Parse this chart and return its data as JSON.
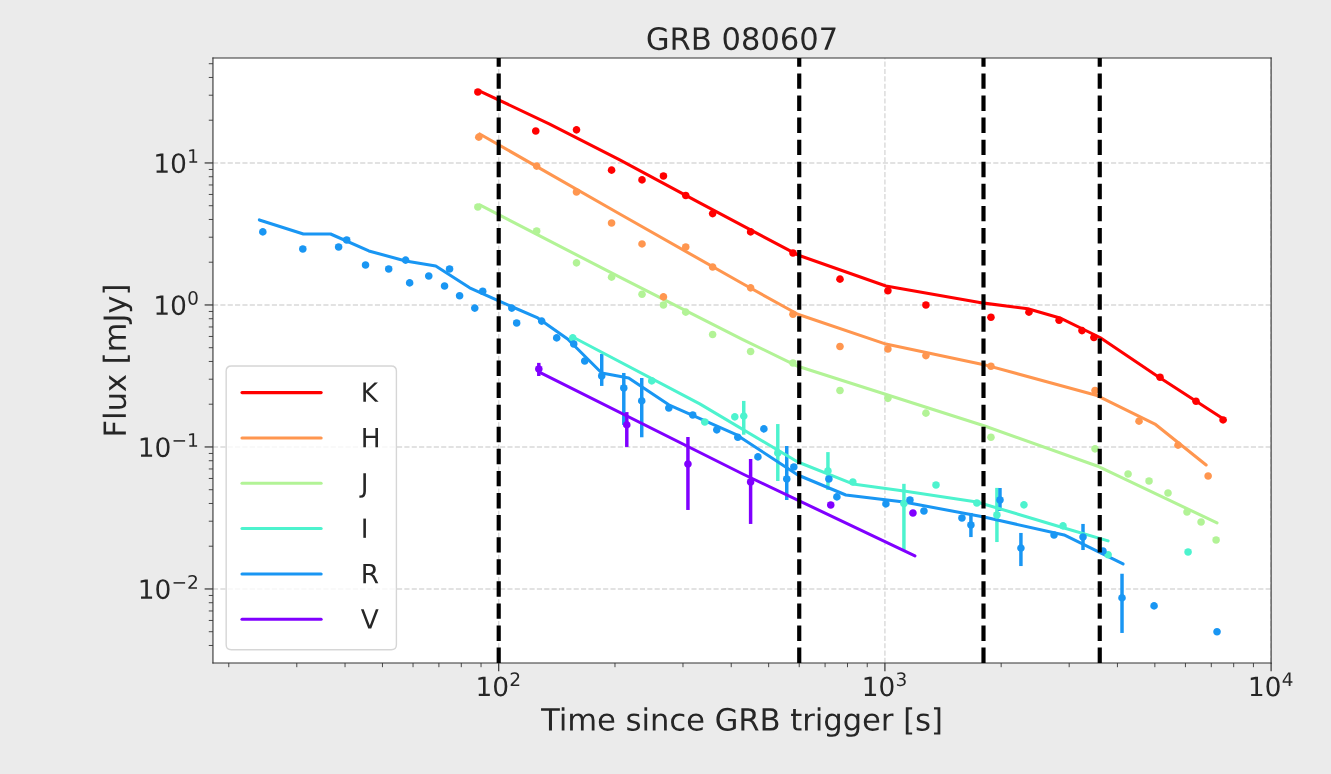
{
  "chart_data": {
    "type": "scatter",
    "title": "GRB 080607",
    "xlabel": "Time since GRB trigger [s]",
    "ylabel": "Flux [mJy]",
    "log": "xy",
    "grid": true,
    "legend": "bottom left",
    "xlim": [
      18.2,
      10000
    ],
    "ylim": [
      0.00301,
      54.8
    ],
    "xticks": [
      {
        "value": 100,
        "label": "10$^{2}$"
      },
      {
        "value": 1000,
        "label": "10$^{3}$"
      },
      {
        "value": 10000,
        "label": "10$^{4}$"
      }
    ],
    "yticks": [
      {
        "value": 0.01,
        "label": "10$^{−2}$"
      },
      {
        "value": 0.1,
        "label": "10$^{−1}$"
      },
      {
        "value": 1,
        "label": "10$^{0}$"
      },
      {
        "value": 10,
        "label": "10$^{1}$"
      }
    ],
    "ref_lines": [
      {
        "axis": "x",
        "value": 100,
        "color": "#000000",
        "line_style": "dashed"
      },
      {
        "axis": "x",
        "value": 600,
        "color": "#000000",
        "line_style": "dashed"
      },
      {
        "axis": "x",
        "value": 1800,
        "color": "#000000",
        "line_style": "dashed"
      },
      {
        "axis": "x",
        "value": 3600,
        "color": "#000000",
        "line_style": "dashed"
      }
    ],
    "series": [
      {
        "type": "line",
        "marker": "none",
        "name": "K",
        "color": "#ff0000",
        "x": [
          89.3,
          135.5,
          205.8,
          331.6,
          595,
          1006,
          1805,
          2345,
          2839,
          3606,
          5035,
          7600
        ],
        "values": [
          32.1,
          18.8,
          10.5,
          5.23,
          2.25,
          1.36,
          1.03,
          0.94,
          0.81,
          0.59,
          0.32,
          0.155
        ]
      },
      {
        "type": "line",
        "marker": "none",
        "name": "H",
        "color": "#ff964f",
        "x": [
          89.3,
          205.8,
          428.6,
          595,
          1006,
          1805,
          3543,
          5003,
          6788
        ],
        "values": [
          16.0,
          4.37,
          1.41,
          0.86,
          0.53,
          0.38,
          0.23,
          0.145,
          0.0747
        ]
      },
      {
        "type": "line",
        "marker": "none",
        "name": "J",
        "color": "#b2f396",
        "x": [
          89.3,
          205.8,
          428.6,
          595,
          1805,
          3543,
          7244
        ],
        "values": [
          5.06,
          1.57,
          0.57,
          0.37,
          0.141,
          0.0735,
          0.0292
        ]
      },
      {
        "type": "line",
        "marker": "none",
        "name": "I",
        "color": "#4df3ce",
        "x": [
          155.5,
          331.6,
          595,
          826,
          1120,
          1730,
          2911,
          3784
        ],
        "values": [
          0.595,
          0.201,
          0.0784,
          0.0549,
          0.049,
          0.041,
          0.0269,
          0.0218
        ]
      },
      {
        "type": "line",
        "marker": "none",
        "name": "R",
        "color": "#1996f3",
        "x": [
          24.0,
          31.2,
          36.7,
          46.1,
          57.4,
          68.7,
          84.1,
          99.0,
          126.2,
          150.8,
          184.8,
          217,
          275.7,
          413.6,
          595,
          792,
          1120,
          1805,
          2911,
          4136
        ],
        "values": [
          3.97,
          3.16,
          3.16,
          2.4,
          2.04,
          1.88,
          1.32,
          1.08,
          0.81,
          0.576,
          0.332,
          0.306,
          0.198,
          0.1215,
          0.0635,
          0.0459,
          0.041,
          0.0321,
          0.024,
          0.015
        ]
      },
      {
        "type": "line",
        "marker": "none",
        "name": "V",
        "color": "#8000ff",
        "x": [
          128.5,
          428.6,
          1196
        ],
        "values": [
          0.332,
          0.0645,
          0.0171
        ]
      },
      {
        "marker": "circle",
        "color": "#ff0000",
        "x": [
          88.3,
          124.7,
          159,
          196,
          235,
          267,
          305,
          358,
          449,
          578,
          765,
          1018,
          1277,
          1882,
          2360,
          2825,
          3238,
          3477,
          5157,
          6391,
          7510
        ],
        "values": [
          31.6,
          16.8,
          17.1,
          8.9,
          7.6,
          8.1,
          5.9,
          4.4,
          3.27,
          2.32,
          1.52,
          1.26,
          1.0,
          0.82,
          0.89,
          0.78,
          0.66,
          0.59,
          0.31,
          0.21,
          0.155
        ]
      },
      {
        "marker": "circle",
        "color": "#ff964f",
        "x": [
          88.8,
          125.4,
          159,
          196,
          235,
          267,
          305,
          358,
          449,
          578,
          765,
          1018,
          1277,
          1882,
          3500,
          4550,
          5741,
          6870
        ],
        "values": [
          15.2,
          9.5,
          6.25,
          3.78,
          2.69,
          1.14,
          2.56,
          1.85,
          1.32,
          0.86,
          0.51,
          0.49,
          0.44,
          0.37,
          0.25,
          0.152,
          0.103,
          0.0625
        ]
      },
      {
        "marker": "circle",
        "color": "#b2f396",
        "x": [
          88.3,
          125.4,
          159,
          196,
          235,
          267,
          305,
          358,
          449,
          578,
          765,
          1018,
          1277,
          1882,
          3500,
          4262,
          4830,
          5408,
          6056,
          6587,
          7204
        ],
        "values": [
          4.9,
          3.32,
          1.98,
          1.57,
          1.19,
          1.0,
          0.89,
          0.62,
          0.47,
          0.39,
          0.25,
          0.22,
          0.173,
          0.117,
          0.097,
          0.0645,
          0.0576,
          0.0474,
          0.0348,
          0.0296,
          0.0221
        ]
      },
      {
        "marker": "circle",
        "color": "#4df3ce",
        "x": [
          155.5,
          249,
          341.6,
          408.6,
          431,
          528,
          712,
          826,
          1120,
          1356,
          1730,
          1950,
          2291,
          2892,
          3784,
          6095
        ],
        "values": [
          0.586,
          0.292,
          0.15,
          0.163,
          0.165,
          0.0907,
          0.0678,
          0.0567,
          0.04,
          0.054,
          0.0403,
          0.0332,
          0.0391,
          0.0278,
          0.0174,
          0.0182
        ],
        "errors": [
          null,
          null,
          null,
          null,
          [
            0.122,
            0.211
          ],
          [
            0.0576,
            0.145
          ],
          [
            0.0498,
            0.092
          ],
          null,
          [
            0.0185,
            0.055
          ],
          null,
          null,
          [
            0.0214,
            0.0515
          ],
          null,
          null,
          null,
          null
        ]
      },
      {
        "marker": "circle",
        "color": "#1996f3",
        "x": [
          24.5,
          31.1,
          38.5,
          40.4,
          45.2,
          51.9,
          57.4,
          58.8,
          65.9,
          72.4,
          74.6,
          79.2,
          86.7,
          90.9,
          108.1,
          111.3,
          129.2,
          141.3,
          156.4,
          167,
          184.8,
          210.8,
          234.6,
          275.7,
          318,
          367,
          416,
          469,
          486,
          557,
          581,
          716,
          751,
          1006,
          1161,
          1262,
          1583,
          1670,
          1986,
          2250,
          2741,
          3258,
          3670,
          4111,
          4977,
          7244
        ],
        "values": [
          3.27,
          2.48,
          2.56,
          2.87,
          1.91,
          1.79,
          2.07,
          1.43,
          1.6,
          1.36,
          1.79,
          1.16,
          0.95,
          1.25,
          0.95,
          0.747,
          0.77,
          0.586,
          0.531,
          0.403,
          0.316,
          0.26,
          0.211,
          0.188,
          0.168,
          0.132,
          0.117,
          0.0851,
          0.134,
          0.0595,
          0.0723,
          0.0595,
          0.0445,
          0.0397,
          0.0423,
          0.0354,
          0.0316,
          0.0282,
          0.0423,
          0.0194,
          0.024,
          0.0232,
          0.0185,
          0.00865,
          0.0076,
          0.005
        ],
        "errors": [
          null,
          null,
          null,
          null,
          null,
          null,
          null,
          null,
          null,
          null,
          null,
          null,
          null,
          null,
          null,
          null,
          null,
          null,
          null,
          null,
          [
            0.269,
            0.452
          ],
          [
            0.143,
            0.332
          ],
          [
            0.117,
            0.306
          ],
          null,
          null,
          null,
          null,
          null,
          null,
          [
            0.0423,
            0.1016
          ],
          null,
          null,
          null,
          null,
          null,
          null,
          null,
          [
            0.0232,
            0.0343
          ],
          [
            0.0354,
            0.0514
          ],
          [
            0.0145,
            0.0248
          ],
          null,
          [
            0.0188,
            0.0287
          ],
          null,
          [
            0.0049,
            0.0128
          ],
          null,
          null
        ]
      },
      {
        "marker": "circle",
        "color": "#8000ff",
        "x": [
          127,
          214.6,
          309,
          449,
          724,
          1182
        ],
        "values": [
          0.354,
          0.143,
          0.0759,
          0.0567,
          0.039,
          0.0343
        ],
        "errors": [
          [
            0.316,
            0.391
          ],
          [
            0.1,
            0.176
          ],
          [
            0.036,
            0.1175
          ],
          [
            0.0287,
            0.0823
          ],
          null,
          null
        ]
      }
    ]
  }
}
